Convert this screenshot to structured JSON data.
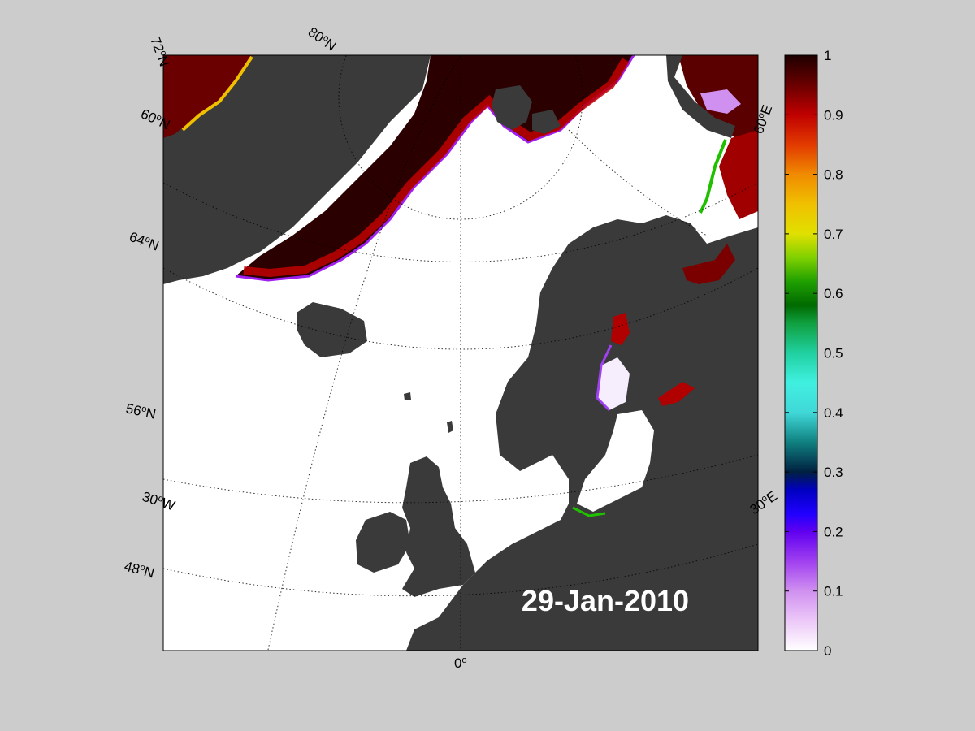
{
  "map": {
    "date": "29-Jan-2010",
    "value_range": [
      0,
      1
    ],
    "colors": {
      "figure_bg": "#cccccc",
      "ocean_open": "#ffffff",
      "land": "#3a3a3a",
      "land_highlight": "#808080",
      "ice_full": "#2a0000"
    },
    "lat_labels": [
      "72°N",
      "60°N",
      "64°N",
      "56°N",
      "48°N"
    ],
    "lon_labels": [
      "80°N",
      "60°E",
      "30°E",
      "30°W",
      "0°"
    ],
    "latitude_labels": {
      "lat72": {
        "sup_base": "72",
        "sup_o": "o",
        "sup_n": "N"
      },
      "lat80": {
        "base": "80",
        "o": "o",
        "n": "N"
      },
      "lat60w": {
        "base": "60",
        "o": "o",
        "n": "N"
      },
      "lat64": {
        "base": "64",
        "o": "o",
        "n": "N"
      },
      "lat56": {
        "base": "56",
        "o": "o",
        "n": "N"
      },
      "lat48": {
        "base": "48",
        "o": "o",
        "n": "N"
      },
      "lon30w": {
        "base": "30",
        "o": "o",
        "n": "W"
      },
      "lon60e": {
        "base": "60",
        "o": "o",
        "n": "E"
      },
      "lon30e": {
        "base": "30",
        "o": "o",
        "n": "E"
      },
      "lon0": {
        "base": "0",
        "o": "o"
      }
    }
  },
  "colorbar": {
    "ticks": [
      "1",
      "0.9",
      "0.8",
      "0.7",
      "0.6",
      "0.5",
      "0.4",
      "0.3",
      "0.2",
      "0.1",
      "0"
    ],
    "stops": [
      {
        "v": 1.0,
        "c": "#1e0000"
      },
      {
        "v": 0.95,
        "c": "#6a0000"
      },
      {
        "v": 0.9,
        "c": "#c00000"
      },
      {
        "v": 0.85,
        "c": "#e23a00"
      },
      {
        "v": 0.8,
        "c": "#f08a00"
      },
      {
        "v": 0.75,
        "c": "#f0c000"
      },
      {
        "v": 0.7,
        "c": "#e0e000"
      },
      {
        "v": 0.66,
        "c": "#80d000"
      },
      {
        "v": 0.62,
        "c": "#20a000"
      },
      {
        "v": 0.58,
        "c": "#006a00"
      },
      {
        "v": 0.55,
        "c": "#10a040"
      },
      {
        "v": 0.5,
        "c": "#20d0a0"
      },
      {
        "v": 0.45,
        "c": "#40f0e0"
      },
      {
        "v": 0.4,
        "c": "#40d8d8"
      },
      {
        "v": 0.35,
        "c": "#108080"
      },
      {
        "v": 0.3,
        "c": "#002040"
      },
      {
        "v": 0.27,
        "c": "#0000c0"
      },
      {
        "v": 0.23,
        "c": "#2000ff"
      },
      {
        "v": 0.2,
        "c": "#6000f0"
      },
      {
        "v": 0.15,
        "c": "#a040f0"
      },
      {
        "v": 0.1,
        "c": "#d090f0"
      },
      {
        "v": 0.05,
        "c": "#ecc8f8"
      },
      {
        "v": 0.0,
        "c": "#ffffff"
      }
    ]
  }
}
